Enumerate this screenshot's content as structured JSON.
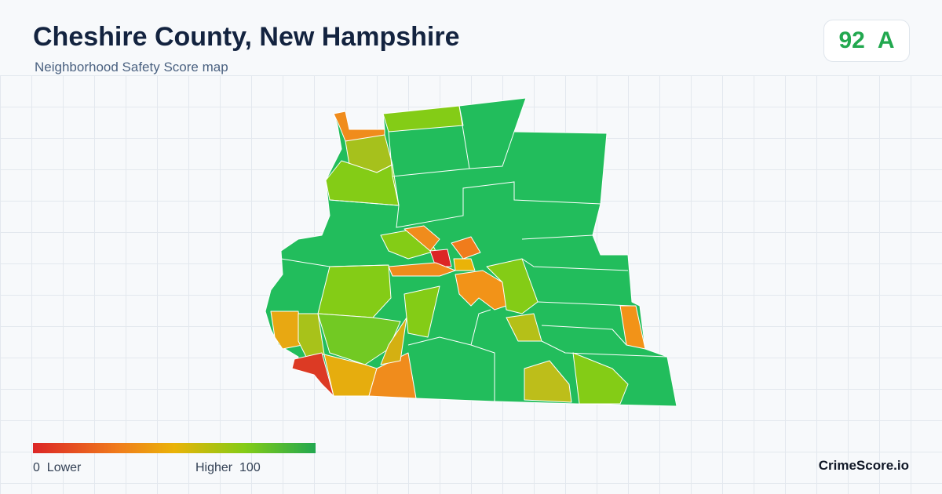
{
  "header": {
    "title": "Cheshire County, New Hampshire",
    "subtitle": "Neighborhood Safety Score map"
  },
  "score": {
    "value": 92,
    "grade": "A"
  },
  "legend": {
    "min": 0,
    "min_label": "Lower",
    "max_label": "Higher",
    "max": 100
  },
  "footer": {
    "brand": "CrimeScore.io"
  }
}
